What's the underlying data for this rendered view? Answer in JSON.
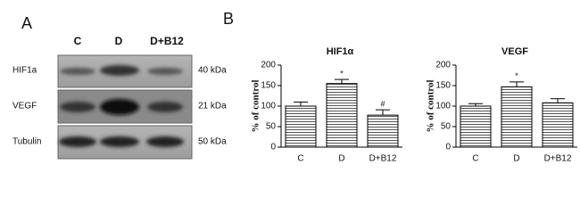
{
  "panels": {
    "a": {
      "label": "A",
      "columns": [
        "C",
        "D",
        "D+B12"
      ],
      "rows": [
        {
          "name": "HIF1a",
          "size": "40 kDa"
        },
        {
          "name": "VEGF",
          "size": "21 kDa"
        },
        {
          "name": "Tubulin",
          "size": "50 kDa"
        }
      ]
    },
    "b": {
      "label": "B"
    }
  },
  "chart_data": [
    {
      "type": "bar",
      "title": "HIF1α",
      "y_label": "% of control",
      "categories": [
        "C",
        "D",
        "D+B12"
      ],
      "values": [
        100,
        155,
        78
      ],
      "errors": [
        10,
        10,
        13
      ],
      "annotations": [
        null,
        "*",
        "#"
      ],
      "color": "#555555",
      "ylim": [
        0,
        200
      ],
      "yticks": [
        0,
        50,
        100,
        150,
        200
      ]
    },
    {
      "type": "bar",
      "title": "VEGF",
      "y_label": "% of control",
      "categories": [
        "C",
        "D",
        "D+B12"
      ],
      "values": [
        100,
        147,
        108
      ],
      "errors": [
        6,
        12,
        10
      ],
      "annotations": [
        null,
        "*",
        null
      ],
      "color": "#555555",
      "ylim": [
        0,
        200
      ],
      "yticks": [
        0,
        50,
        100,
        150,
        200
      ]
    }
  ]
}
